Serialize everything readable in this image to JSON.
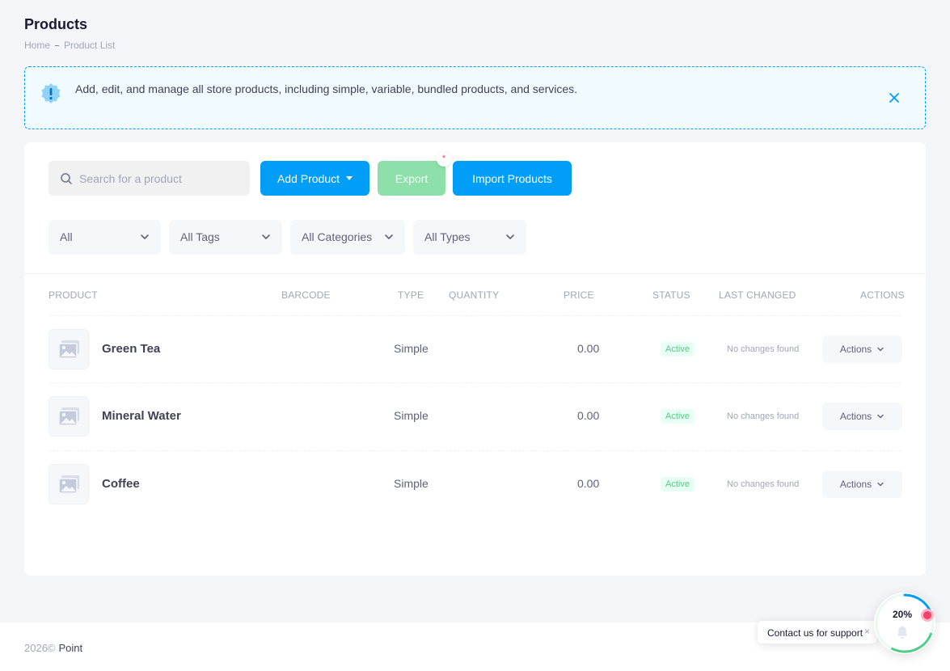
{
  "header": {
    "title": "Products",
    "breadcrumb": [
      "Home",
      "Product List"
    ]
  },
  "notice": {
    "text": "Add, edit, and manage all store products, including simple, variable, bundled products, and services.",
    "icon": "info-exclamation-icon"
  },
  "toolbar": {
    "search_placeholder": "Search for a product",
    "add_label": "Add Product",
    "export_label": "Export",
    "export_badge": "*",
    "import_label": "Import Products"
  },
  "filters": [
    "All",
    "All Tags",
    "All Categories",
    "All Types"
  ],
  "table": {
    "columns": [
      "Product",
      "Barcode",
      "Type",
      "Quantity",
      "Price",
      "Status",
      "Last Changed",
      "Actions"
    ],
    "rows": [
      {
        "name": "Green Tea",
        "barcode": "",
        "type": "Simple",
        "quantity": "",
        "price": "0.00",
        "status": "Active",
        "last_changed": "No changes found",
        "actions": "Actions"
      },
      {
        "name": "Mineral Water",
        "barcode": "",
        "type": "Simple",
        "quantity": "",
        "price": "0.00",
        "status": "Active",
        "last_changed": "No changes found",
        "actions": "Actions"
      },
      {
        "name": "Coffee",
        "barcode": "",
        "type": "Simple",
        "quantity": "",
        "price": "0.00",
        "status": "Active",
        "last_changed": "No changes found",
        "actions": "Actions"
      }
    ]
  },
  "footer": {
    "year": "2026©",
    "brand": "Point"
  },
  "support": {
    "label": "Contact us for support",
    "close": "×",
    "progress_label": "20%",
    "progress": 0.2
  },
  "colors": {
    "primary": "#009ef7",
    "success": "#50cd89",
    "export_disabled": "#8de0aa",
    "danger": "#f1416c"
  }
}
